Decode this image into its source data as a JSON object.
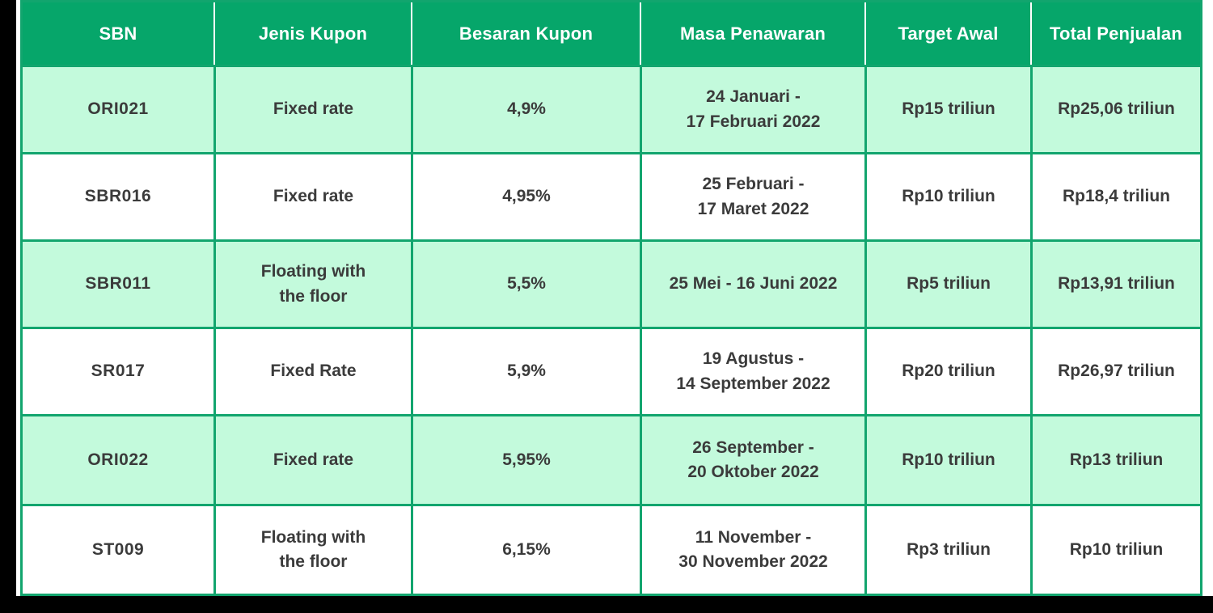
{
  "chart_data": {
    "type": "table",
    "title": "",
    "columns": [
      "SBN",
      "Jenis Kupon",
      "Besaran Kupon",
      "Masa Penawaran",
      "Target Awal",
      "Total Penjualan"
    ],
    "rows": [
      [
        "ORI021",
        "Fixed rate",
        "4,9%",
        "24 Januari -\n17 Februari 2022",
        "Rp15 triliun",
        "Rp25,06 triliun"
      ],
      [
        "SBR016",
        "Fixed rate",
        "4,95%",
        "25 Februari -\n17 Maret 2022",
        "Rp10 triliun",
        "Rp18,4 triliun"
      ],
      [
        "SBR011",
        "Floating with\nthe floor",
        "5,5%",
        "25 Mei - 16 Juni 2022",
        "Rp5 triliun",
        "Rp13,91 triliun"
      ],
      [
        "SR017",
        "Fixed Rate",
        "5,9%",
        "19 Agustus -\n14 September 2022",
        "Rp20 triliun",
        "Rp26,97 triliun"
      ],
      [
        "ORI022",
        "Fixed rate",
        "5,95%",
        "26 September -\n20 Oktober 2022",
        "Rp10 triliun",
        "Rp13 triliun"
      ],
      [
        "ST009",
        "Floating with\nthe floor",
        "6,15%",
        "11 November -\n30 November 2022",
        "Rp3 triliun",
        "Rp10 triliun"
      ]
    ],
    "layout_hints": {
      "shaded_row_indexes": [
        0,
        2,
        4
      ],
      "header_background": "#06A66A",
      "shaded_row_background": "#C3FADC",
      "border_color": "#12A56E",
      "text_color": "#3B3B3B",
      "header_text_color": "#FFFFFF"
    }
  }
}
